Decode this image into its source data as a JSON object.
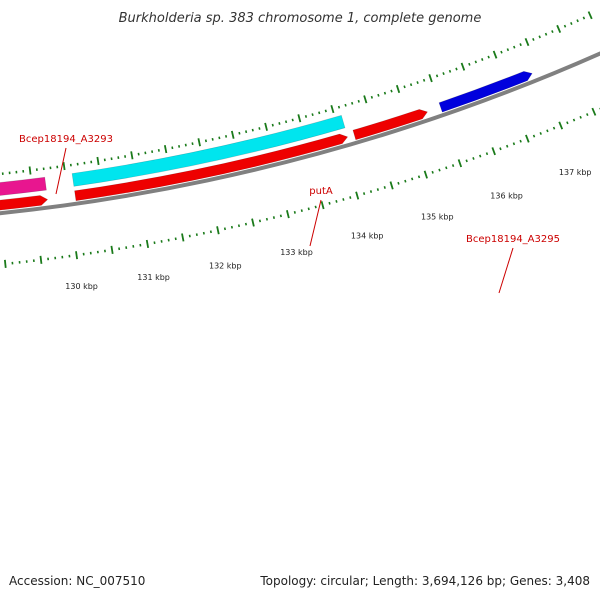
{
  "title": "Burkholderia sp. 383 chromosome 1, complete genome",
  "footer": {
    "accession": "Accession: NC_007510",
    "summary": "Topology: circular; Length: 3,694,126 bp; Genes: 3,408"
  },
  "genes": [
    {
      "id": "pink-gene",
      "strand": "plus",
      "color": "#e8168f",
      "start_kbp": 128.9,
      "end_kbp": 130.7,
      "label": "Bcep18194_A3293"
    },
    {
      "id": "cyan-gene",
      "strand": "plus",
      "color": "#00e5ee",
      "start_kbp": 131.1,
      "end_kbp": 135.1,
      "label": "putA"
    },
    {
      "id": "red-gene-1",
      "strand": "minus",
      "color": "#ee0000",
      "start_kbp": 128.9,
      "end_kbp": 130.7,
      "label": null
    },
    {
      "id": "red-gene-2",
      "strand": "minus",
      "color": "#ee0000",
      "start_kbp": 131.1,
      "end_kbp": 135.1,
      "label": null
    },
    {
      "id": "red-gene-3",
      "strand": "minus",
      "color": "#ee0000",
      "start_kbp": 135.2,
      "end_kbp": 136.3,
      "label": "Bcep18194_A3295"
    },
    {
      "id": "blue-gene",
      "strand": "minus",
      "color": "#0000dd",
      "start_kbp": 136.5,
      "end_kbp": 137.9,
      "label": null
    }
  ],
  "scale_labels": [
    "130 kbp",
    "131 kbp",
    "132 kbp",
    "133 kbp",
    "134 kbp",
    "135 kbp",
    "136 kbp",
    "137 kbp"
  ],
  "colors": {
    "backbone": "#808080",
    "ticks": "#1a7a1a",
    "gene_label": "#cc0000"
  }
}
